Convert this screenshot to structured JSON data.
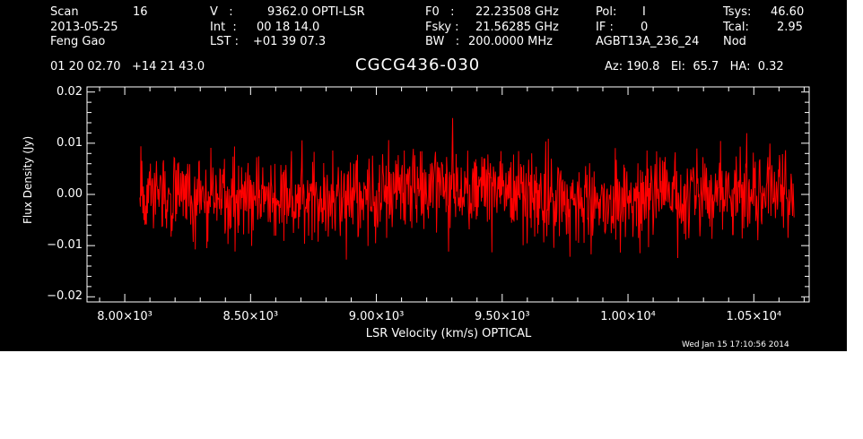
{
  "header": {
    "scan_label": "Scan",
    "scan_value": "16",
    "date": "2013-05-25",
    "observer": "Feng Gao",
    "v_label": "V   :",
    "v_value": "9362.0 OPTI-LSR",
    "int_label": "Int  :",
    "int_value": "00 18 14.0",
    "lst_label": "LST :",
    "lst_value": "+01 39 07.3",
    "f0_label": "F0   :",
    "f0_value": "22.23508 GHz",
    "fsky_label": "Fsky :",
    "fsky_value": "21.56285 GHz",
    "bw_label": "BW   :",
    "bw_value": "200.0000 MHz",
    "pol_label": "Pol:",
    "pol_value": "I",
    "if_label": "IF :",
    "if_value": "0",
    "project": "AGBT13A_236_24",
    "tsys_label": "Tsys:",
    "tsys_value": "46.60",
    "tcal_label": "Tcal:",
    "tcal_value": "2.95",
    "mode": "Nod",
    "coords": "01 20 02.70   +14 21 43.0",
    "source": "CGCG436-030",
    "az_el_ha": "Az: 190.8   El:  65.7   HA:  0.32"
  },
  "footer": {
    "timestamp": "Wed Jan 15 17:10:56 2014"
  },
  "colors": {
    "background": "#000000",
    "foreground": "#ffffff",
    "trace": "#ff0000"
  },
  "chart_data": {
    "type": "line",
    "title": "CGCG436-030",
    "xlabel": "LSR Velocity (km/s) OPTICAL",
    "ylabel": "Flux Density (Jy)",
    "xlim": [
      7850,
      10720
    ],
    "ylim": [
      -0.021,
      0.021
    ],
    "x_ticks": [
      8000,
      8500,
      9000,
      9500,
      10000,
      10500
    ],
    "x_tick_labels": [
      "8.00×10³",
      "8.50×10³",
      "9.00×10³",
      "9.50×10³",
      "1.00×10⁴",
      "1.05×10⁴"
    ],
    "y_ticks": [
      -0.02,
      -0.01,
      0.0,
      0.01,
      0.02
    ],
    "y_tick_labels": [
      "−0.02",
      "−0.01",
      "0.00",
      "0.01",
      "0.02"
    ],
    "grid": false,
    "series": [
      {
        "x_start": 8060,
        "x_end": 10660,
        "n_points": 1300,
        "noise_rms": 0.0042,
        "baseline": [
          [
            8060,
            0.0002
          ],
          [
            8300,
            0.0001
          ],
          [
            8500,
            -0.0005
          ],
          [
            8750,
            -0.0012
          ],
          [
            9000,
            0.0002
          ],
          [
            9200,
            0.0018
          ],
          [
            9360,
            0.0025
          ],
          [
            9500,
            0.0006
          ],
          [
            9700,
            -0.001
          ],
          [
            9900,
            -0.0016
          ],
          [
            10100,
            -0.0006
          ],
          [
            10300,
            0.0004
          ],
          [
            10500,
            0.0008
          ],
          [
            10660,
            0.0004
          ]
        ]
      }
    ]
  }
}
